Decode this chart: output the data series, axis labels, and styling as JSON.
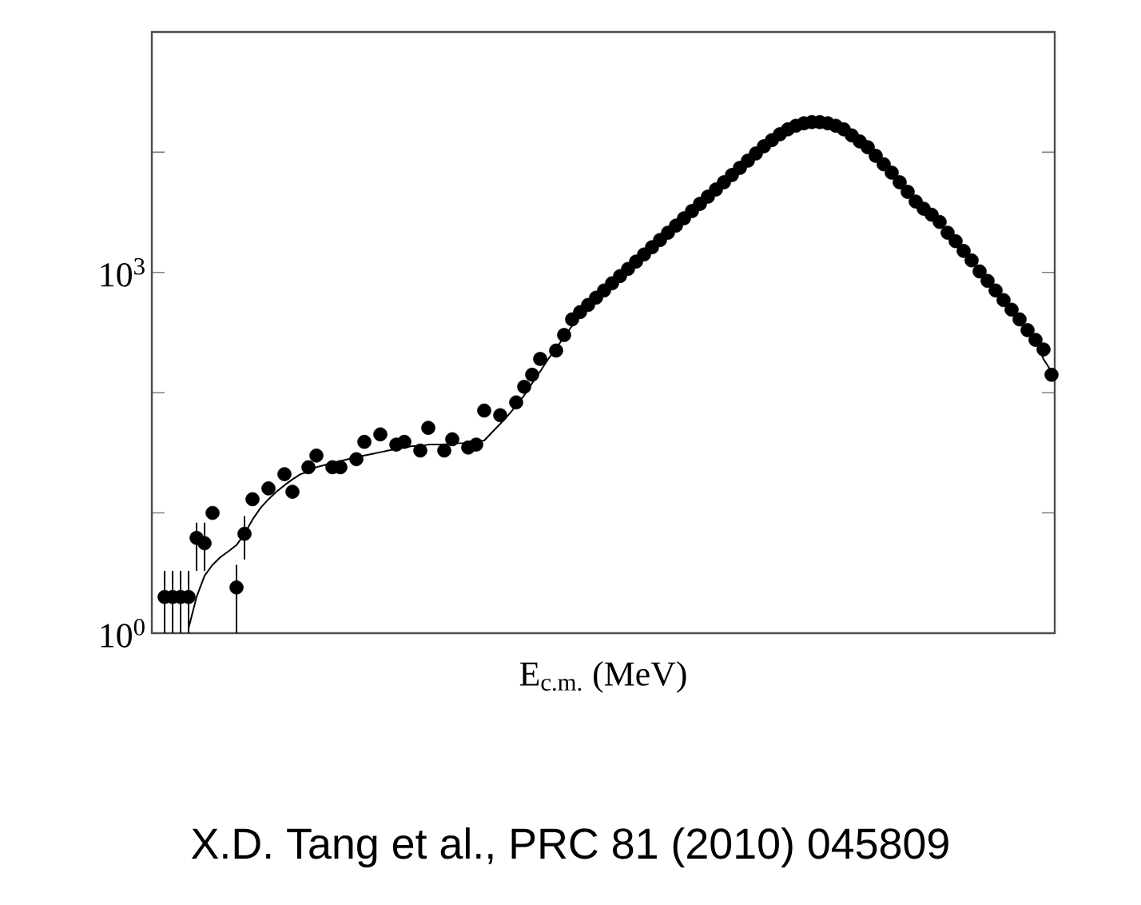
{
  "chart_data": {
    "type": "scatter",
    "xlabel": "E$_{c.m.}$ (MeV)",
    "annotations": [
      "X.D. Tang et al., PRC 81 (2010) 045809"
    ],
    "categories": [
      null,
      null,
      null,
      null,
      null,
      null,
      null,
      null,
      null,
      null,
      null,
      null,
      null,
      null,
      null,
      null,
      null,
      null,
      null,
      null,
      null,
      null,
      null,
      null,
      null,
      null,
      null,
      null,
      null,
      null,
      null,
      null,
      null,
      null,
      null,
      null,
      null,
      null,
      null,
      null,
      null,
      null,
      null,
      null,
      null,
      null,
      null,
      null,
      null,
      null,
      null,
      null,
      null,
      null,
      null,
      null,
      null,
      null,
      null,
      null,
      null,
      null,
      null,
      null,
      null,
      null,
      null,
      null,
      null,
      null,
      null,
      null,
      null,
      null,
      null,
      null,
      null,
      null,
      null,
      null,
      null,
      null,
      null,
      null,
      null,
      null,
      null,
      null,
      null,
      null,
      null,
      null,
      null,
      null,
      null,
      null,
      null,
      null,
      null,
      null,
      null,
      null,
      null,
      null,
      null,
      null,
      null,
      null,
      null,
      null,
      null,
      null
    ],
    "ylim": [
      1,
      100000
    ],
    "yticks": [
      {
        "value": 1,
        "label": "10$^{0}$"
      },
      {
        "value": 10,
        "label": null
      },
      {
        "value": 100,
        "label": null
      },
      {
        "value": 1000,
        "label": "10$^{3}$"
      },
      {
        "value": 10000,
        "label": null
      }
    ],
    "log": "y",
    "tick_labels": "y",
    "series": [
      {
        "type": "line",
        "color": "#000000",
        "marker": "none",
        "line_style": "solid",
        "values": [
          null,
          null,
          null,
          1.1,
          2.0,
          3.0,
          3.7,
          4.3,
          4.8,
          5.4,
          6.7,
          8.8,
          11,
          13,
          15,
          17,
          19,
          21,
          22,
          24,
          25,
          26,
          27,
          28,
          29,
          30,
          31,
          32,
          33,
          34,
          35,
          36,
          36,
          37,
          37,
          37,
          38,
          38,
          38,
          39,
          40,
          47,
          55,
          65,
          78,
          95,
          120,
          150,
          190,
          235,
          290,
          360,
          468,
          537,
          617,
          708,
          813,
          933,
          1070,
          1230,
          1410,
          1620,
          1860,
          2140,
          2450,
          2820,
          3240,
          3720,
          4270,
          4900,
          5620,
          6460,
          7410,
          8510,
          9770,
          11200,
          12600,
          14100,
          15500,
          16600,
          17400,
          17800,
          17800,
          17400,
          16600,
          15500,
          13800,
          12300,
          11000,
          9330,
          7940,
          6760,
          5620,
          4680,
          3890,
          3390,
          3020,
          2630,
          2140,
          1820,
          1510,
          1260,
          1020,
          851,
          708,
          589,
          490,
          407,
          331,
          275,
          190,
          150
        ]
      },
      {
        "color": "#000000",
        "marker": "circle",
        "values": [
          2.0,
          2.0,
          2.0,
          2.0,
          6.2,
          5.6,
          10,
          null,
          null,
          2.4,
          6.7,
          13,
          null,
          16,
          null,
          21,
          15,
          null,
          24,
          30,
          null,
          24,
          24,
          null,
          28,
          39,
          null,
          45,
          null,
          37,
          39,
          null,
          33,
          51,
          null,
          33,
          41,
          null,
          35,
          37,
          71,
          null,
          65,
          null,
          83,
          112,
          141,
          191,
          null,
          224,
          302,
          407,
          468,
          537,
          617,
          708,
          813,
          933,
          1070,
          1230,
          1410,
          1620,
          1860,
          2140,
          2450,
          2820,
          3240,
          3720,
          4270,
          4900,
          5620,
          6460,
          7410,
          8510,
          9770,
          11200,
          12600,
          14100,
          15500,
          16600,
          17400,
          17800,
          17800,
          17400,
          16600,
          15500,
          13800,
          12300,
          11000,
          9330,
          7940,
          6760,
          5620,
          4680,
          3890,
          3390,
          3020,
          2630,
          2140,
          1820,
          1510,
          1260,
          1020,
          851,
          708,
          589,
          490,
          407,
          331,
          275,
          229,
          141
        ],
        "errors": [
          [
            1,
            3.3
          ],
          [
            1,
            3.3
          ],
          [
            1,
            3.3
          ],
          [
            1,
            3.3
          ],
          [
            3.3,
            8.3
          ],
          [
            3.3,
            8.3
          ],
          null,
          null,
          null,
          [
            1,
            3.7
          ],
          [
            4.1,
            9.4
          ],
          null,
          null,
          null,
          null,
          null,
          null,
          null,
          null,
          null,
          null,
          null,
          null,
          null,
          null,
          null,
          null,
          null,
          null,
          null,
          null,
          null,
          null,
          null,
          null,
          null,
          null,
          null,
          null,
          null,
          null,
          null,
          null,
          null,
          null,
          null,
          null,
          null,
          null,
          null,
          null,
          null,
          null,
          null,
          null,
          null,
          null,
          null,
          null,
          null,
          null,
          null,
          null,
          null,
          null,
          null,
          null,
          null,
          null,
          null,
          null,
          null,
          null,
          null,
          null,
          null,
          null,
          null,
          null,
          null,
          null,
          null,
          null,
          null,
          null,
          null,
          null,
          null,
          null,
          null,
          null,
          null,
          null,
          null,
          null,
          null,
          null,
          null,
          null,
          null,
          null,
          null,
          null,
          null,
          null,
          null,
          null,
          null,
          null,
          null,
          null,
          null
        ]
      }
    ]
  }
}
